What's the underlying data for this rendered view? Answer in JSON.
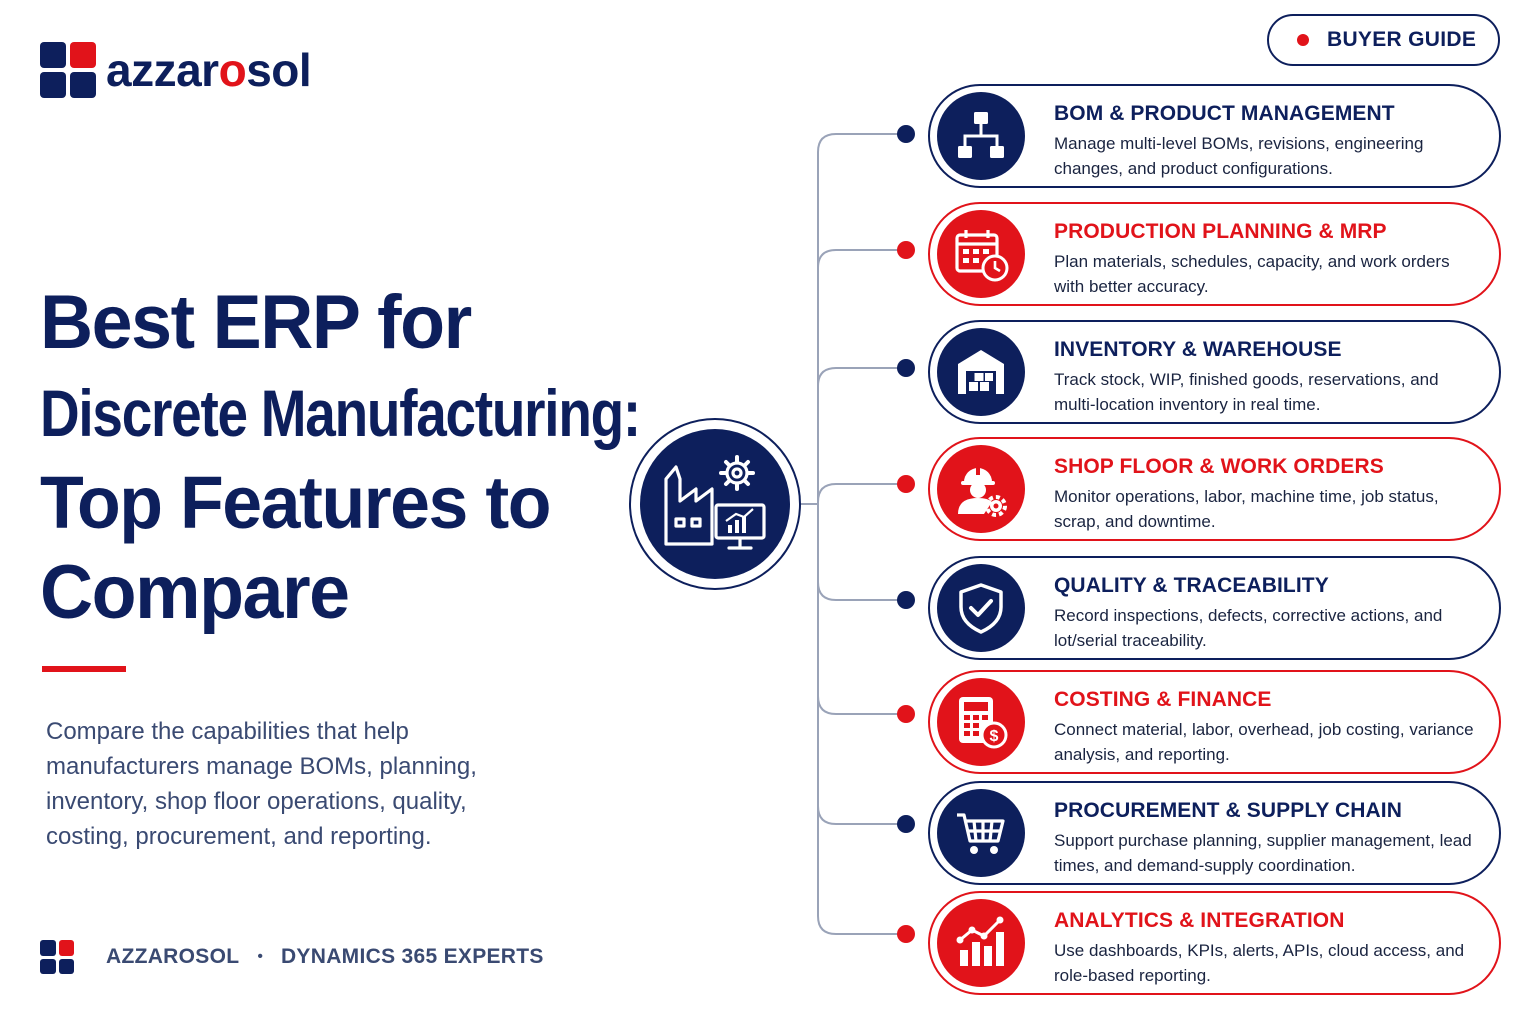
{
  "brand": {
    "name_prefix": "azzar",
    "name_accent": "o",
    "name_suffix": "sol",
    "navy": "#0d1f5c",
    "red": "#e1131a"
  },
  "badge": {
    "label": "BUYER GUIDE"
  },
  "title": {
    "line1": "Best ERP for",
    "line2": "Discrete Manufacturing:",
    "line3": "Top Features to",
    "line4": "Compare"
  },
  "description": "Compare the capabilities that help manufacturers manage BOMs, planning, inventory, shop floor operations, quality, costing, procurement, and reporting.",
  "footer": {
    "company": "AZZAROSOL",
    "separator": "•",
    "tagline": "DYNAMICS 365 EXPERTS"
  },
  "hub": {
    "icon": "factory-gear-monitor-icon"
  },
  "features": [
    {
      "title": "BOM & PRODUCT MANAGEMENT",
      "description": "Manage multi-level BOMs, revisions, engineering changes, and product configurations.",
      "accent": "navy",
      "icon": "hierarchy-icon"
    },
    {
      "title": "PRODUCTION PLANNING & MRP",
      "description": "Plan materials, schedules, capacity, and work orders with better accuracy.",
      "accent": "red",
      "icon": "calendar-clock-icon"
    },
    {
      "title": "INVENTORY & WAREHOUSE",
      "description": "Track stock, WIP, finished goods, reservations, and multi-location inventory in real time.",
      "accent": "navy",
      "icon": "warehouse-icon"
    },
    {
      "title": "SHOP FLOOR & WORK ORDERS",
      "description": "Monitor operations, labor, machine time, job status, scrap, and downtime.",
      "accent": "red",
      "icon": "worker-gear-icon"
    },
    {
      "title": "QUALITY & TRACEABILITY",
      "description": "Record inspections, defects, corrective actions, and lot/serial traceability.",
      "accent": "navy",
      "icon": "shield-check-icon"
    },
    {
      "title": "COSTING & FINANCE",
      "description": "Connect material, labor, overhead, job costing, variance analysis, and reporting.",
      "accent": "red",
      "icon": "calculator-dollar-icon"
    },
    {
      "title": "PROCUREMENT & SUPPLY CHAIN",
      "description": "Support purchase planning, supplier management, lead times, and demand-supply coordination.",
      "accent": "navy",
      "icon": "shopping-cart-icon"
    },
    {
      "title": "ANALYTICS & INTEGRATION",
      "description": "Use dashboards, KPIs, alerts, APIs, cloud access, and role-based reporting.",
      "accent": "red",
      "icon": "bar-chart-trend-icon"
    }
  ]
}
